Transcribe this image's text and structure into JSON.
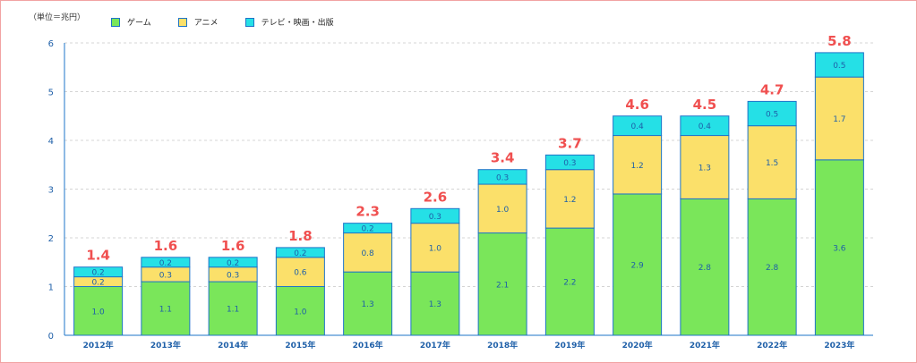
{
  "chart_data": {
    "type": "bar",
    "stacked": true,
    "unit_label": "（単位＝兆円）",
    "categories": [
      "2012年",
      "2013年",
      "2014年",
      "2015年",
      "2016年",
      "2017年",
      "2018年",
      "2019年",
      "2020年",
      "2021年",
      "2022年",
      "2023年"
    ],
    "series": [
      {
        "name": "ゲーム",
        "color": "#7ae65a",
        "values": [
          1.0,
          1.1,
          1.1,
          1.0,
          1.3,
          1.3,
          2.1,
          2.2,
          2.9,
          2.8,
          2.8,
          3.6
        ]
      },
      {
        "name": "アニメ",
        "color": "#fbe06a",
        "values": [
          0.2,
          0.3,
          0.3,
          0.6,
          0.8,
          1.0,
          1.0,
          1.2,
          1.2,
          1.3,
          1.5,
          1.7
        ]
      },
      {
        "name": "テレビ・映画・出版",
        "color": "#25e0e6",
        "values": [
          0.2,
          0.2,
          0.2,
          0.2,
          0.2,
          0.3,
          0.3,
          0.3,
          0.4,
          0.4,
          0.5,
          0.5
        ]
      }
    ],
    "totals": [
      1.4,
      1.6,
      1.6,
      1.8,
      2.3,
      2.6,
      3.4,
      3.7,
      4.6,
      4.5,
      4.7,
      5.8
    ],
    "ylim": [
      0,
      6
    ],
    "yticks": [
      0,
      1,
      2,
      3,
      4,
      5,
      6
    ],
    "xlabel": "",
    "ylabel": "",
    "grid": true,
    "legend_position": "top-left"
  }
}
